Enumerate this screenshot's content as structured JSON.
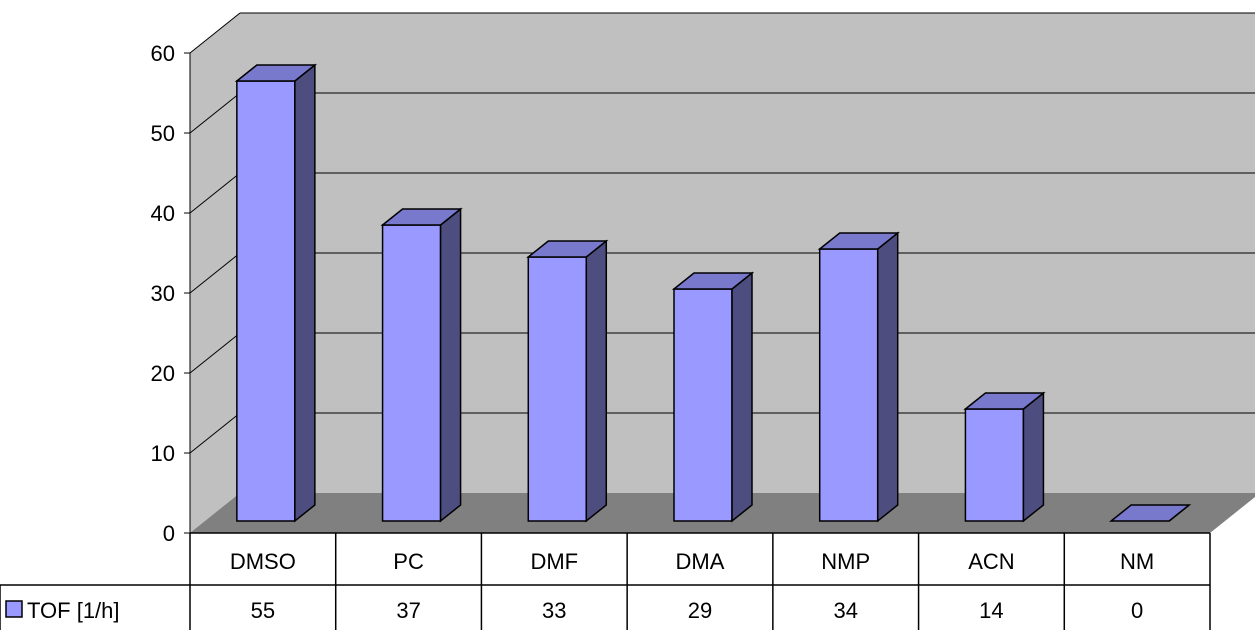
{
  "chart_data": {
    "type": "bar",
    "style": "3d-column-with-data-table",
    "categories": [
      "DMSO",
      "PC",
      "DMF",
      "DMA",
      "NMP",
      "ACN",
      "NM"
    ],
    "series": [
      {
        "name": "TOF [1/h]",
        "values": [
          55,
          37,
          33,
          29,
          34,
          14,
          0
        ]
      }
    ],
    "ylim": [
      0,
      60
    ],
    "yticks": [
      0,
      10,
      20,
      30,
      40,
      50,
      60
    ],
    "ytick_labels": [
      "0",
      "10",
      "20",
      "30",
      "40",
      "50",
      "60"
    ],
    "grid": true,
    "legend": "data-table-left",
    "colors": {
      "bar_front": "#9999ff",
      "bar_side": "#4d4d80",
      "bar_top": "#7878cc",
      "wall": "#c0c0c0",
      "floor": "#808080",
      "gridline": "#000000"
    }
  }
}
